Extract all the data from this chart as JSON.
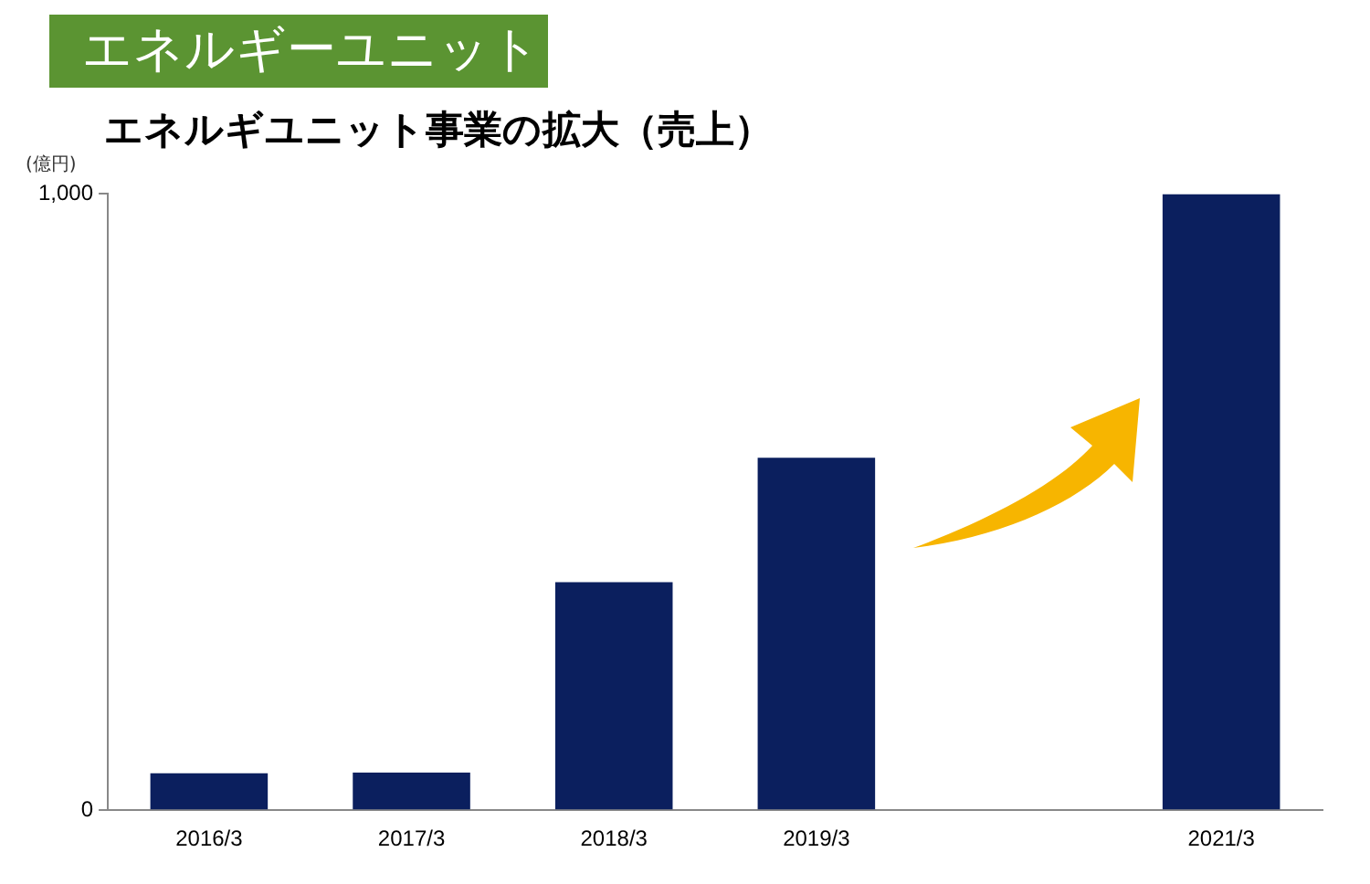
{
  "chart_data": {
    "type": "bar",
    "title": "エネルギーユニット",
    "subtitle": "エネルギユニット事業の拡大（売上）",
    "ylabel": "(億円)",
    "categories": [
      "2016/3",
      "2017/3",
      "2018/3",
      "2019/3",
      null,
      "2021/3"
    ],
    "values": [
      60,
      61,
      370,
      572,
      null,
      1000
    ],
    "color": "#0b1f5e",
    "ylim": [
      0,
      1000
    ],
    "yticks": [
      0,
      {
        "value": 1000,
        "label": "1,000"
      }
    ],
    "grid": false,
    "legend": false
  }
}
